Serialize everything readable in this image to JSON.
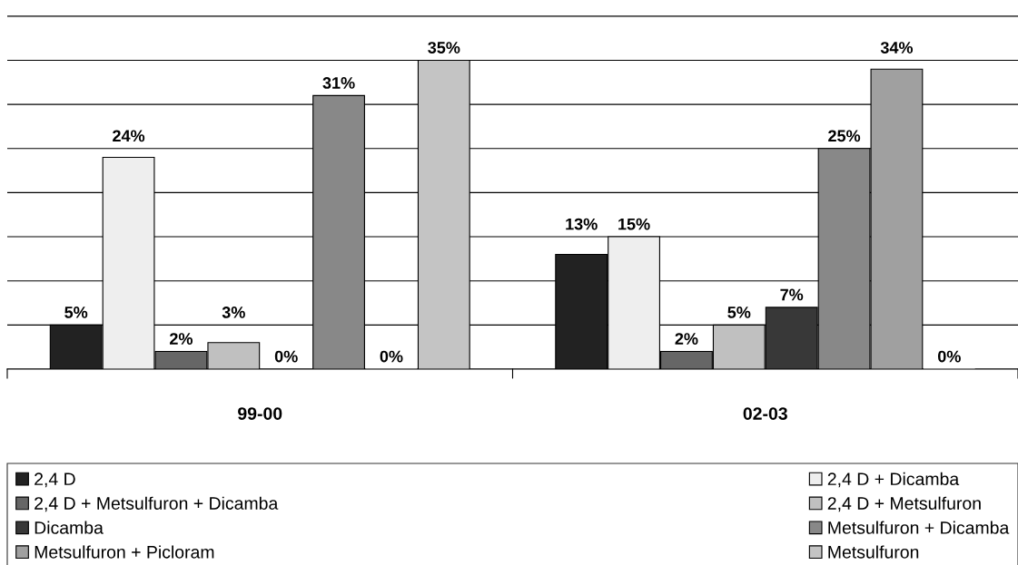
{
  "chart_data": {
    "type": "bar",
    "categories": [
      "99-00",
      "02-03"
    ],
    "series": [
      {
        "name": "2,4 D",
        "color": "#222222",
        "values": [
          5,
          13
        ],
        "value_labels": [
          "5%",
          "13%"
        ]
      },
      {
        "name": "2,4 D + Dicamba",
        "color": "#eeeeee",
        "values": [
          24,
          15
        ],
        "value_labels": [
          "24%",
          "15%"
        ]
      },
      {
        "name": "2,4 D + Metsulfuron + Dicamba",
        "color": "#666666",
        "values": [
          2,
          2
        ],
        "value_labels": [
          "2%",
          "2%"
        ]
      },
      {
        "name": "2,4 D + Metsulfuron",
        "color": "#c0c0c0",
        "values": [
          3,
          5
        ],
        "value_labels": [
          "3%",
          "5%"
        ]
      },
      {
        "name": "Dicamba",
        "color": "#383838",
        "values": [
          0,
          7
        ],
        "value_labels": [
          "0%",
          "7%"
        ]
      },
      {
        "name": "Metsulfuron + Dicamba",
        "color": "#888888",
        "values": [
          31,
          25
        ],
        "value_labels": [
          "31%",
          "25%"
        ]
      },
      {
        "name": "Metsulfuron + Picloram",
        "color": "#a0a0a0",
        "values": [
          0,
          34
        ],
        "value_labels": [
          "0%",
          "34%"
        ]
      },
      {
        "name": "Metsulfuron",
        "color": "#c4c4c4",
        "values": [
          35,
          0
        ],
        "value_labels": [
          "35%",
          "0%"
        ]
      }
    ],
    "grid": "y",
    "legend": "bottom",
    "tick_labels": "x"
  }
}
